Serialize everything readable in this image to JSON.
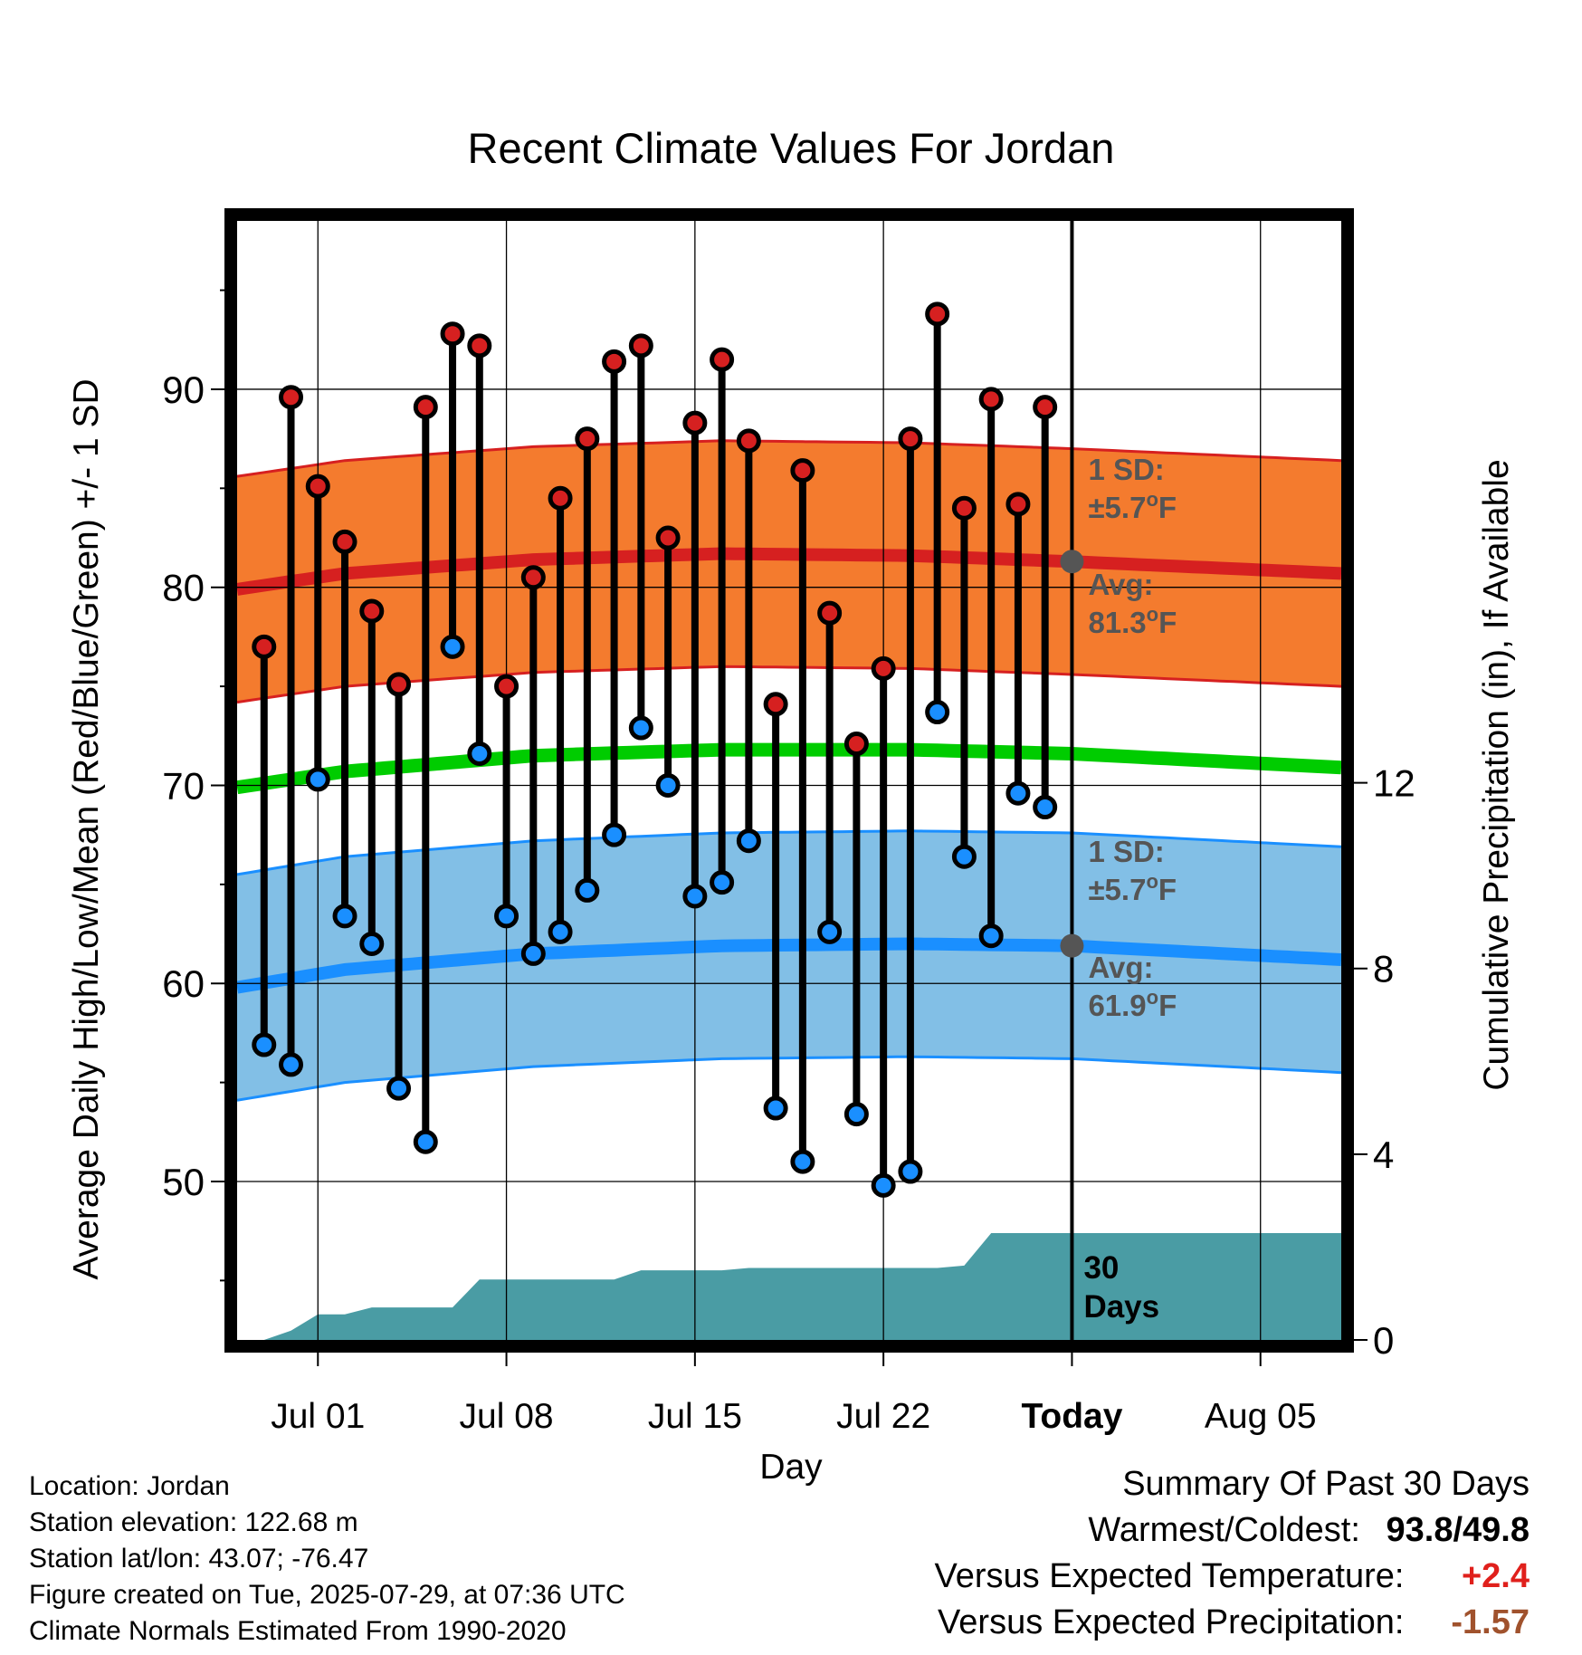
{
  "chart_data": {
    "type": "line",
    "title": "Recent Climate Values For Jordan",
    "xlabel": "Day",
    "ylabel_left": "Average Daily High/Low/Mean (Red/Blue/Green) +/- 1 SD",
    "ylabel_right": "Cumulative Precipitation (in), If Available",
    "x_tick_labels": [
      "Jul 01",
      "Jul 08",
      "Jul 15",
      "Jul 22",
      "Today",
      "Aug 05"
    ],
    "y_left_ticks": [
      50,
      60,
      70,
      80,
      90
    ],
    "y_left_range": [
      42,
      98.5
    ],
    "y_right_ticks": [
      0,
      4,
      8,
      12
    ],
    "y_right_range": [
      0,
      24.1
    ],
    "x_range": [
      "2025-06-28",
      "2025-08-08"
    ],
    "grid": true,
    "today": "2025-07-29",
    "days": [
      "2025-06-29",
      "2025-06-30",
      "2025-07-01",
      "2025-07-02",
      "2025-07-03",
      "2025-07-04",
      "2025-07-05",
      "2025-07-06",
      "2025-07-07",
      "2025-07-08",
      "2025-07-09",
      "2025-07-10",
      "2025-07-11",
      "2025-07-12",
      "2025-07-13",
      "2025-07-14",
      "2025-07-15",
      "2025-07-16",
      "2025-07-17",
      "2025-07-18",
      "2025-07-19",
      "2025-07-20",
      "2025-07-21",
      "2025-07-22",
      "2025-07-23",
      "2025-07-24",
      "2025-07-25",
      "2025-07-26",
      "2025-07-27",
      "2025-07-28"
    ],
    "series": [
      {
        "name": "High",
        "color": "#d62020",
        "values": [
          77.0,
          89.6,
          85.1,
          82.3,
          78.8,
          75.1,
          89.1,
          92.8,
          92.2,
          75.0,
          80.5,
          84.5,
          87.5,
          91.4,
          92.2,
          82.5,
          88.3,
          91.5,
          87.4,
          74.1,
          85.9,
          78.7,
          72.1,
          75.9,
          87.5,
          93.8,
          84.0,
          89.5,
          84.2,
          89.1
        ]
      },
      {
        "name": "Low",
        "color": "#1a8fff",
        "values": [
          56.9,
          55.9,
          70.3,
          63.4,
          62.0,
          54.7,
          52.0,
          77.0,
          71.6,
          63.4,
          61.5,
          62.6,
          64.7,
          67.5,
          72.9,
          70.0,
          64.4,
          65.1,
          67.2,
          53.7,
          51.0,
          62.6,
          53.4,
          49.8,
          50.5,
          73.7,
          66.4,
          62.4,
          69.6,
          68.9
        ]
      }
    ],
    "normals": {
      "dates": [
        "2025-06-28",
        "2025-07-02",
        "2025-07-09",
        "2025-07-16",
        "2025-07-23",
        "2025-07-29",
        "2025-08-08"
      ],
      "high_avg": [
        79.9,
        80.7,
        81.4,
        81.7,
        81.6,
        81.3,
        80.7
      ],
      "low_avg": [
        59.8,
        60.7,
        61.5,
        61.9,
        62.0,
        61.9,
        61.2
      ],
      "mean_avg": [
        69.9,
        70.7,
        71.5,
        71.8,
        71.8,
        71.6,
        70.9
      ],
      "sd": 5.7,
      "high_band_color": "#f47b2e",
      "high_line_color": "#d62020",
      "low_band_color": "#82bfe6",
      "low_line_color": "#1a8fff",
      "mean_line_color": "#00cc00"
    },
    "precip": {
      "color": "#4a9ca4",
      "dates": [
        "2025-06-28",
        "2025-06-29",
        "2025-06-30",
        "2025-07-01",
        "2025-07-02",
        "2025-07-03",
        "2025-07-04",
        "2025-07-05",
        "2025-07-06",
        "2025-07-07",
        "2025-07-08",
        "2025-07-09",
        "2025-07-10",
        "2025-07-11",
        "2025-07-12",
        "2025-07-13",
        "2025-07-14",
        "2025-07-15",
        "2025-07-16",
        "2025-07-17",
        "2025-07-18",
        "2025-07-19",
        "2025-07-20",
        "2025-07-21",
        "2025-07-22",
        "2025-07-23",
        "2025-07-24",
        "2025-07-25",
        "2025-07-26",
        "2025-07-27",
        "2025-07-28",
        "2025-08-08"
      ],
      "values": [
        0,
        0,
        0.2,
        0.55,
        0.55,
        0.7,
        0.7,
        0.7,
        0.7,
        1.3,
        1.3,
        1.3,
        1.3,
        1.3,
        1.3,
        1.5,
        1.5,
        1.5,
        1.5,
        1.55,
        1.55,
        1.55,
        1.55,
        1.55,
        1.55,
        1.55,
        1.55,
        1.6,
        2.3,
        2.3,
        2.3,
        2.3
      ]
    },
    "annotations": {
      "high_sd_label": "1 SD:",
      "high_sd_value": "±5.7",
      "high_avg_label": "Avg:",
      "high_avg_value": "81.3",
      "low_sd_label": "1 SD:",
      "low_sd_value": "±5.7",
      "low_avg_label": "Avg:",
      "low_avg_value": "61.9",
      "unit_sup": "o",
      "unit": "F",
      "marker_color": "#555555",
      "label_color": "#555555",
      "days_label_1": "30",
      "days_label_2": "Days"
    }
  },
  "info": {
    "location": "Location: Jordan",
    "elevation": "Station elevation: 122.68 m",
    "latlon": "Station lat/lon: 43.07; -76.47",
    "created": "Figure created on Tue, 2025-07-29, at 07:36 UTC",
    "normals_period": "Climate Normals Estimated From 1990-2020"
  },
  "summary": {
    "title": "Summary Of Past 30 Days",
    "warm_cold_label": "Warmest/Coldest:",
    "warm_value": "93.8",
    "separator": "/",
    "cold_value": "49.8",
    "temp_label": "Versus Expected Temperature:",
    "temp_value": "+2.4",
    "precip_label": "Versus Expected Precipitation:",
    "precip_value": "-1.57"
  }
}
